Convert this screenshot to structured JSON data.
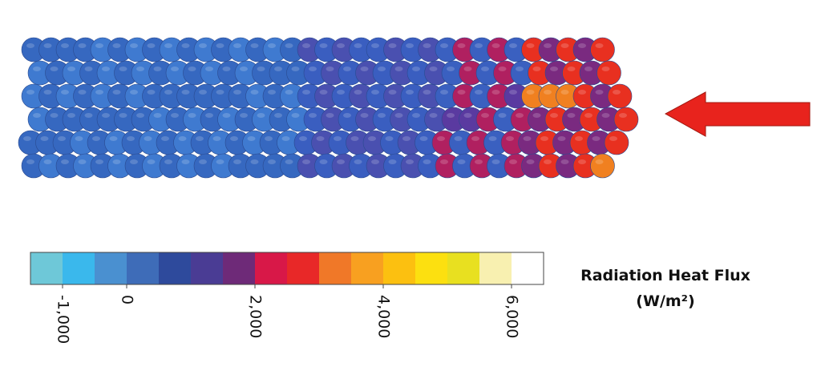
{
  "colorbar": {
    "label": "Radiation Heat Flux",
    "unit": "(W/m²)",
    "range": [
      -1500,
      6500
    ],
    "ticks": [
      {
        "value": -1000,
        "label": "-1,000"
      },
      0,
      {
        "value": 2000,
        "label": "2,000"
      },
      {
        "value": 4000,
        "label": "4,000"
      },
      {
        "value": 6000,
        "label": "6,000"
      }
    ],
    "colors": [
      "#6ec8d8",
      "#3ab8ec",
      "#4a90d0",
      "#3e6cb8",
      "#2e4a9c",
      "#4a3c94",
      "#6e2a78",
      "#d81848",
      "#e82828",
      "#f07828",
      "#f8a020",
      "#fcc010",
      "#fce010",
      "#e8e020",
      "#f8f0b0",
      "#ffffff"
    ]
  }
}
